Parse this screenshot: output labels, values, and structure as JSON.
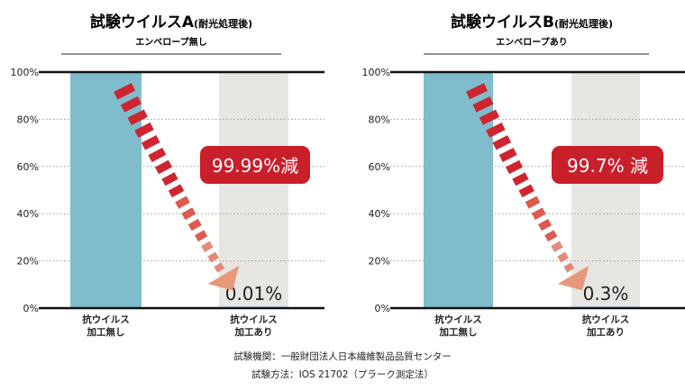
{
  "chart_data": [
    {
      "type": "bar",
      "title": "試験ウイルスA",
      "title_note": "(耐光処理後)",
      "subtitle": "エンベロープ無し",
      "categories": [
        "抗ウイルス\n加工無し",
        "抗ウイルス\n加工あり"
      ],
      "values": [
        100,
        0.01
      ],
      "value_label": "0.01%",
      "reduction_label": "99.99%減",
      "yticks": [
        "0%",
        "20%",
        "40%",
        "60%",
        "80%",
        "100%"
      ],
      "ylim": [
        0,
        100
      ],
      "bar_colors": [
        "#7fbccc",
        "#cde4ea"
      ],
      "background_colors": [
        "#7fbccc",
        "#e8e6e3"
      ]
    },
    {
      "type": "bar",
      "title": "試験ウイルスB",
      "title_note": "(耐光処理後)",
      "subtitle": "エンベロープあり",
      "categories": [
        "抗ウイルス\n加工無し",
        "抗ウイルス\n加工あり"
      ],
      "values": [
        100,
        0.3
      ],
      "value_label": "0.3%",
      "reduction_label": "99.7% 減",
      "yticks": [
        "0%",
        "20%",
        "40%",
        "60%",
        "80%",
        "100%"
      ],
      "ylim": [
        0,
        100
      ],
      "bar_colors": [
        "#7fbccc",
        "#cde4ea"
      ],
      "background_colors": [
        "#7fbccc",
        "#e8e6e3"
      ]
    }
  ],
  "footer": {
    "line1": "試験機関：一般財団法人日本繊維製品品質センター",
    "line2": "試験方法：IOS 21702（プラーク測定法）"
  },
  "colors": {
    "arrow_red": "#cf2530",
    "arrow_head": "#e8987a",
    "badge_red": "#c91f2b"
  }
}
